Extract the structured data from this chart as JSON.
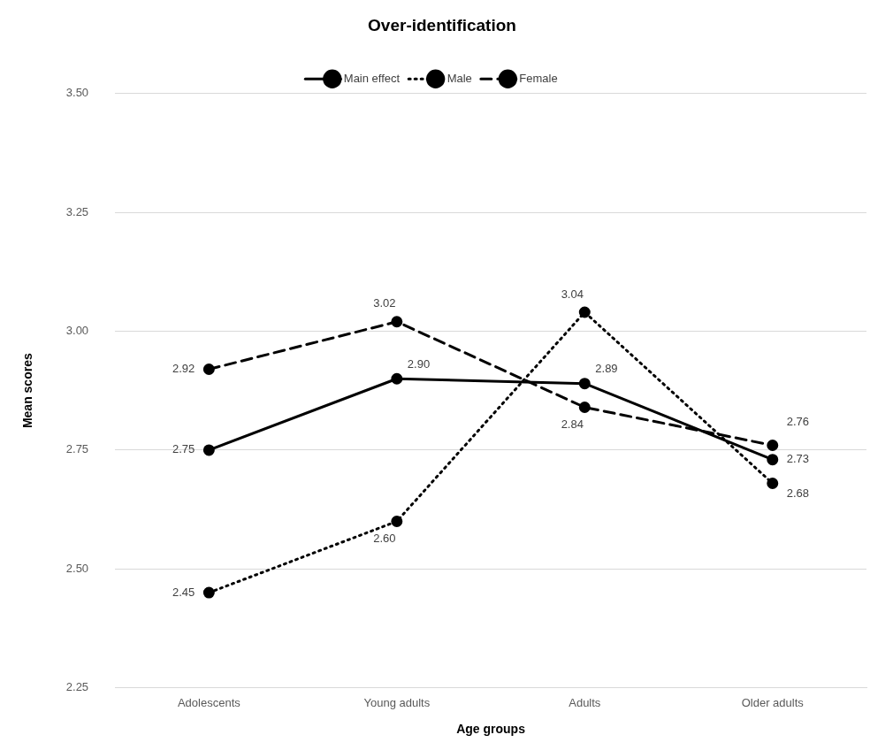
{
  "chart_data": {
    "type": "line",
    "title": "Over-identification",
    "xlabel": "Age groups",
    "ylabel": "Mean scores",
    "categories": [
      "Adolescents",
      "Young adults",
      "Adults",
      "Older adults"
    ],
    "series": [
      {
        "name": "Main effect",
        "color": "#000000",
        "line_style": "solid",
        "values": [
          2.75,
          2.9,
          2.89,
          2.73
        ],
        "value_labels": [
          "2.75",
          "2.90",
          "2.89",
          "2.73"
        ]
      },
      {
        "name": "Male",
        "color": "#000000",
        "line_style": "dotted",
        "values": [
          2.45,
          2.6,
          3.04,
          2.68
        ],
        "value_labels": [
          "2.45",
          "2.60",
          "3.04",
          "2.68"
        ]
      },
      {
        "name": "Female",
        "color": "#000000",
        "line_style": "dashed",
        "values": [
          2.92,
          3.02,
          2.84,
          2.76
        ],
        "value_labels": [
          "2.92",
          "3.02",
          "2.84",
          "2.76"
        ]
      }
    ],
    "ylim": [
      2.25,
      3.5
    ],
    "yticks": [
      {
        "value": 2.25,
        "label": "2.25"
      },
      {
        "value": 2.5,
        "label": "2.50"
      },
      {
        "value": 2.75,
        "label": "2.75"
      },
      {
        "value": 3,
        "label": "3.00"
      },
      {
        "value": 3.25,
        "label": "3.25"
      },
      {
        "value": 3.5,
        "label": "3.50"
      }
    ],
    "grid": "y",
    "legend": "top",
    "marker": "circle"
  }
}
